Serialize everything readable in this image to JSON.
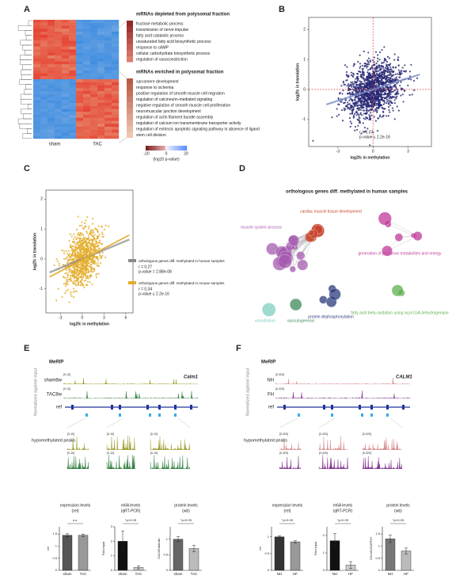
{
  "panel_a": {
    "label": "A",
    "columns": [
      "sham",
      "TAC"
    ],
    "depleted_title": "mRNAs depleted from polysomal fraction",
    "depleted_terms": [
      "fructose metabolic process",
      "transmission of nerve impulse",
      "fatty acid catabolic process",
      "unsaturated fatty acid biosynthetic process",
      "response to cAMP",
      "cellular carbohydrate biosynthetic process",
      "regulation of vasoconstriction"
    ],
    "enriched_title": "mRNAs enriched in polysomal fraction",
    "enriched_terms": [
      "sarcomere development",
      "response to ischemia",
      "positive regulation of smooth muscle cell migration",
      "regulation of calcineurin-mediated signaling",
      "negative regulation of smooth muscle cell proliferation",
      "neuromuscular junction development",
      "regulation of actin filament bundle assembly",
      "regulation of calcium ion transmembrane transporter activity",
      "regulation of extrinsic apoptotic signaling pathway in absence of ligand",
      "stem cell division"
    ],
    "colorbar_ticks": [
      -20,
      0,
      20
    ],
    "colorbar_label": "(log10 p-value)"
  },
  "panel_b": {
    "label": "B",
    "x_label": "log2fc in methylation",
    "y_label": "log2fc in translation",
    "xlim": [
      -5.5,
      5
    ],
    "ylim": [
      -1.9,
      2.4
    ],
    "xticks": [
      -3,
      0,
      3
    ],
    "yticks": [
      -1,
      0,
      1,
      2
    ],
    "stats": [
      "r = 0.37",
      "p-value ≤ 2.2e-16"
    ],
    "color": "#262673"
  },
  "panel_c": {
    "label": "C",
    "x_label": "log2fc in methylation",
    "y_label": "log2fc in translation",
    "xlim": [
      -5,
      7
    ],
    "ylim": [
      -1.8,
      2.3
    ],
    "xticks": [
      -3,
      0,
      3,
      6
    ],
    "yticks": [
      -1,
      0,
      1,
      2
    ],
    "color": "#e3ac2c",
    "legend": [
      {
        "name": "orthologous genes diff. methylated in human samples",
        "stats": [
          "r = 0.27",
          "p-value = 2.88e-08"
        ],
        "color": "#8a8a8a"
      },
      {
        "name": "orthologous genes diff. methylated in mouse samples",
        "stats": [
          "r = 0.34",
          "p-value ≤ 2.2e-16"
        ],
        "color": "#e3ac2c"
      }
    ]
  },
  "panel_d": {
    "label": "D",
    "title": "orthologous genes diff. methylated in human samples",
    "clusters": [
      {
        "name": "muscle system process",
        "color": "#a55bb0"
      },
      {
        "name": "cardiac muscle tissue development",
        "color": "#c9452f"
      },
      {
        "name": "generation of precursor metabolites and energy",
        "color": "#c0399a"
      },
      {
        "name": "fatty acid beta-oxidation using acyl-CoA dehydrogenase",
        "color": "#5fae4f"
      },
      {
        "name": "protein dephosphorylation",
        "color": "#2c3b7a"
      },
      {
        "name": "vasculogenesis",
        "color": "#3f8a5a"
      },
      {
        "name": "vasodilation",
        "color": "#7fcfc0"
      }
    ]
  },
  "panel_e": {
    "label": "E",
    "meRIP": "MeRIP",
    "gene": "Calm1",
    "tracks": [
      "sham8w",
      "TAC8w"
    ],
    "ref": "ref",
    "scale": "[0-10]",
    "side_label": "Normalized against input",
    "peaks_label": "hypomethylated peaks",
    "track_colors": [
      "#9a9a2a",
      "#2c7a3a"
    ],
    "charts": [
      {
        "title": "expression levels",
        "subtitle": "(rel)",
        "y_label": "rel",
        "categories": [
          "sham",
          "TAC"
        ],
        "values": [
          1.45,
          1.45
        ],
        "errors": [
          0.06,
          0.05
        ],
        "colors": [
          "#555",
          "#999"
        ],
        "ylim": [
          0,
          1.8
        ],
        "yticks": [
          0,
          0.5,
          1,
          1.5
        ],
        "annotation": "n.s."
      },
      {
        "title": "m6A levels",
        "subtitle": "(qRT-PCR)",
        "y_label": "Fold input",
        "categories": [
          "sham",
          "TAC"
        ],
        "values": [
          2,
          0.2
        ],
        "errors": [
          0.7,
          0.1
        ],
        "colors": [
          "#111",
          "#ccc"
        ],
        "ylim": [
          0,
          3
        ],
        "yticks": [
          0,
          1,
          2,
          3
        ],
        "annotation": "*p<0.05"
      },
      {
        "title": "protein levels",
        "subtitle": "(wb)",
        "y_label": "CALM1/tubulin",
        "categories": [
          "sham",
          "TAC"
        ],
        "values": [
          1,
          0.7
        ],
        "errors": [
          0.08,
          0.1
        ],
        "colors": [
          "#666",
          "#bbb"
        ],
        "ylim": [
          0,
          1.4
        ],
        "yticks": [
          0,
          0.5,
          1
        ],
        "annotation": "*p<0.05"
      }
    ]
  },
  "panel_f": {
    "label": "F",
    "meRIP": "MeRIP",
    "gene": "CALM1",
    "tracks": [
      "NH",
      "FH"
    ],
    "ref": "ref",
    "scale": "[0-320]",
    "side_label": "Normalized against input",
    "peaks_label": "hypomethylated peaks",
    "track_colors": [
      "#d9868a",
      "#7a2a8a"
    ],
    "charts": [
      {
        "title": "expression levels",
        "subtitle": "(rel)",
        "y_label": "rel",
        "categories": [
          "NH",
          "HF"
        ],
        "values": [
          1.0,
          0.85
        ],
        "errors": [
          0.03,
          0.03
        ],
        "colors": [
          "#333",
          "#999"
        ],
        "ylim": [
          0,
          1.3
        ],
        "yticks": [
          0,
          0.5,
          1
        ],
        "annotation": "*p<0.05"
      },
      {
        "title": "m6A levels",
        "subtitle": "(qRT-PCR)",
        "y_label": "Fold input",
        "categories": [
          "NH",
          "HF"
        ],
        "values": [
          1.7,
          0.3
        ],
        "errors": [
          0.4,
          0.2
        ],
        "colors": [
          "#111",
          "#ccc"
        ],
        "ylim": [
          0,
          2.5
        ],
        "yticks": [
          0,
          1,
          2
        ],
        "annotation": "*p<0.05"
      },
      {
        "title": "protein levels",
        "subtitle": "(wb)",
        "y_label": "CALM1/GAPDH",
        "categories": [
          "NH",
          "HF"
        ],
        "values": [
          1.3,
          0.8
        ],
        "errors": [
          0.15,
          0.12
        ],
        "colors": [
          "#777",
          "#bbb"
        ],
        "ylim": [
          0,
          1.8
        ],
        "yticks": [
          0,
          0.5,
          1,
          1.5
        ],
        "annotation": "*p<0.05"
      }
    ]
  }
}
